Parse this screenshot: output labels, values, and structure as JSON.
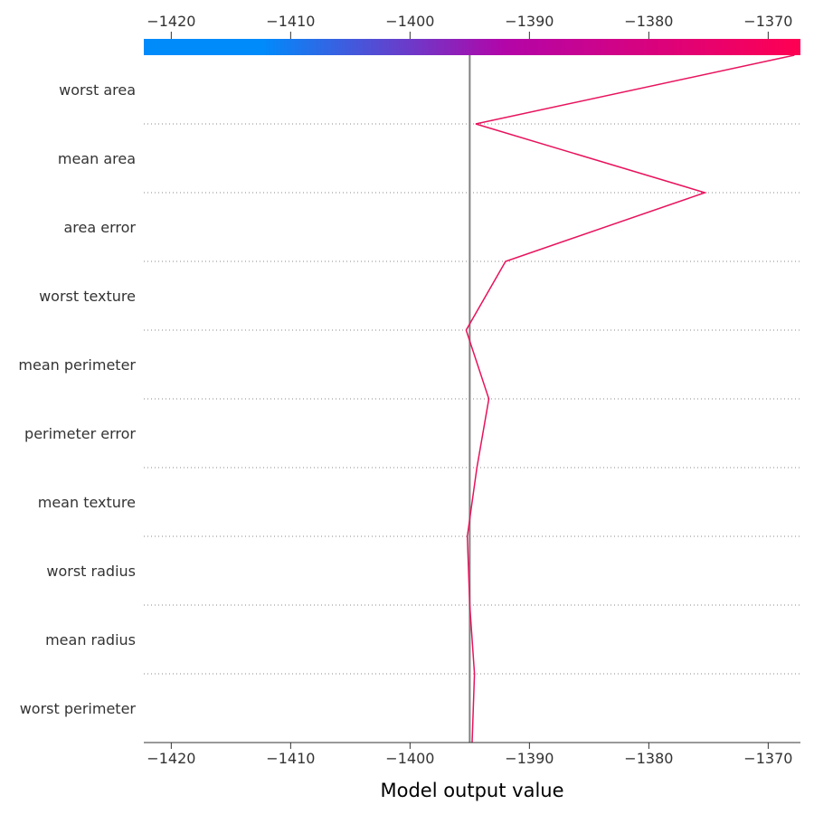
{
  "chart_data": {
    "type": "line",
    "title": "",
    "xlabel": "Model output value",
    "ylabel": "",
    "xlim": [
      -1422.3,
      -1367.3
    ],
    "x_ticks": [
      -1420,
      -1410,
      -1400,
      -1390,
      -1380,
      -1370
    ],
    "x_tick_labels": [
      "−1420",
      "−1410",
      "−1400",
      "−1390",
      "−1380",
      "−1370"
    ],
    "base_value": -1395.0,
    "features": [
      "worst area",
      "mean area",
      "area error",
      "worst texture",
      "mean perimeter",
      "perimeter error",
      "mean texture",
      "worst radius",
      "mean radius",
      "worst perimeter"
    ],
    "path_values": [
      -1367.8,
      -1394.5,
      -1375.3,
      -1392.0,
      -1395.3,
      -1393.4,
      -1394.4,
      -1395.2,
      -1395.0,
      -1394.6,
      -1394.8
    ],
    "colorbar": {
      "low_color": "#008bfb",
      "mid_color": "#b305a8",
      "high_color": "#ff0052"
    },
    "line_color": "#e8125d",
    "base_line_color": "#808080",
    "grid": "dotted horizontal separators"
  }
}
